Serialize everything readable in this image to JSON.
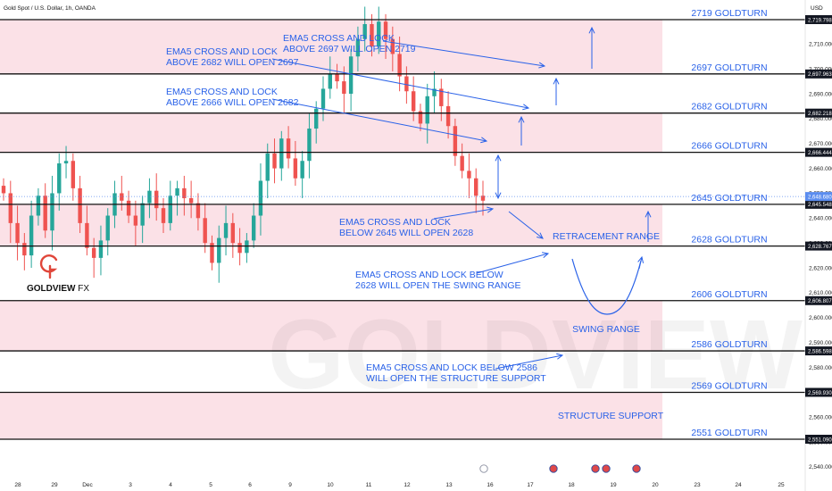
{
  "chart_data": {
    "type": "candlestick",
    "title": "Gold Spot / U.S. Dollar, 1h, OANDA",
    "currency": "USD",
    "ylim": [
      2536,
      2727
    ],
    "x_ticks": [
      "28",
      "29",
      "Dec",
      "3",
      "4",
      "5",
      "6",
      "9",
      "10",
      "11",
      "12",
      "13",
      "16",
      "17",
      "18",
      "19",
      "20",
      "23",
      "24",
      "25"
    ],
    "y_ticks": [
      "2,540.000",
      "2,550.000",
      "2,560.000",
      "2,570.000",
      "2,580.000",
      "2,590.000",
      "2,600.000",
      "2,610.000",
      "2,620.000",
      "2,630.000",
      "2,640.000",
      "2,650.000",
      "2,660.000",
      "2,670.000",
      "2,680.000",
      "2,690.000",
      "2,700.000",
      "2,710.000",
      "2,720.000"
    ],
    "y_tick_values": [
      2540,
      2550,
      2560,
      2570,
      2580,
      2590,
      2600,
      2610,
      2620,
      2630,
      2640,
      2650,
      2660,
      2670,
      2680,
      2690,
      2700,
      2710,
      2720
    ],
    "price_levels": [
      {
        "price": 2719.798,
        "badge": "2,719.798",
        "label": "2719 GOLDTURN"
      },
      {
        "price": 2697.963,
        "badge": "2,697.963",
        "label": "2697 GOLDTURN"
      },
      {
        "price": 2682.218,
        "badge": "2,682.218",
        "label": "2682 GOLDTURN"
      },
      {
        "price": 2666.444,
        "badge": "2,666.444",
        "label": "2666 GOLDTURN"
      },
      {
        "price": 2645.548,
        "badge": "2,645.548",
        "label": "2645 GOLDTURN"
      },
      {
        "price": 2628.767,
        "badge": "2,628.767",
        "label": "2628 GOLDTURN"
      },
      {
        "price": 2606.807,
        "badge": "2,606.807",
        "label": "2606 GOLDTURN"
      },
      {
        "price": 2586.598,
        "badge": "2,586.598",
        "label": "2586 GOLDTURN"
      },
      {
        "price": 2569.93,
        "badge": "2,569.930",
        "label": "2569 GOLDTURN"
      },
      {
        "price": 2551.09,
        "badge": "2,551.090",
        "label": "2551 GOLDTURN"
      }
    ],
    "current_price": {
      "price": 2648.68,
      "badge": "2,648.680"
    },
    "shaded_zones": [
      [
        2697.963,
        2719.798
      ],
      [
        2666.444,
        2682.218
      ],
      [
        2628.767,
        2645.548
      ],
      [
        2586.598,
        2606.807
      ],
      [
        2551.09,
        2569.93
      ]
    ],
    "annotations": [
      {
        "lines": [
          "EMA5 CROSS AND LOCK",
          "ABOVE 2697 WILL OPEN 2719"
        ]
      },
      {
        "lines": [
          "EMA5 CROSS AND LOCK",
          "ABOVE 2682 WILL OPEN 2697"
        ]
      },
      {
        "lines": [
          "EMA5 CROSS AND LOCK",
          "ABOVE 2666 WILL OPEN 2682"
        ]
      },
      {
        "lines": [
          "EMA5 CROSS AND LOCK",
          "BELOW 2645 WILL OPEN 2628"
        ]
      },
      {
        "lines": [
          "EMA5 CROSS AND LOCK BELOW",
          "2628 WILL OPEN THE SWING RANGE"
        ]
      },
      {
        "lines": [
          "EMA5 CROSS AND LOCK BELOW 2586",
          "WILL OPEN THE STRUCTURE SUPPORT"
        ]
      }
    ],
    "zone_labels": [
      "RETRACEMENT RANGE",
      "SWING RANGE",
      "STRUCTURE SUPPORT"
    ],
    "close_path": [
      [
        2650,
        2638,
        2630,
        2625,
        2641,
        2649,
        2635,
        2650,
        2662,
        2663,
        2652,
        2638,
        2628,
        2624,
        2631,
        2641,
        2650,
        2647,
        2641,
        2637,
        2646,
        2651,
        2644,
        2638,
        2649,
        2652,
        2648,
        2646,
        2640,
        2630,
        2622,
        2632,
        2638,
        2630,
        2626,
        2631,
        2641,
        2655,
        2666,
        2660,
        2672,
        2664,
        2656,
        2663,
        2676,
        2684,
        2692,
        2698,
        2695,
        2690,
        2705,
        2712,
        2718,
        2709,
        2719,
        2712,
        2706,
        2697,
        2691,
        2683,
        2678,
        2689,
        2692,
        2685,
        2677,
        2665,
        2659,
        2656,
        2649,
        2647
      ]
    ],
    "colors": {
      "up": "#26a69a",
      "down": "#ef5350",
      "zone": "#fbe1e7",
      "level_line": "#111111",
      "label": "#2a62e8",
      "brand_red": "#e0463a"
    }
  },
  "brand": {
    "name_bold": "GOLDVIEW",
    "name_light": " FX",
    "watermark": "GOLDVIEW FX"
  }
}
